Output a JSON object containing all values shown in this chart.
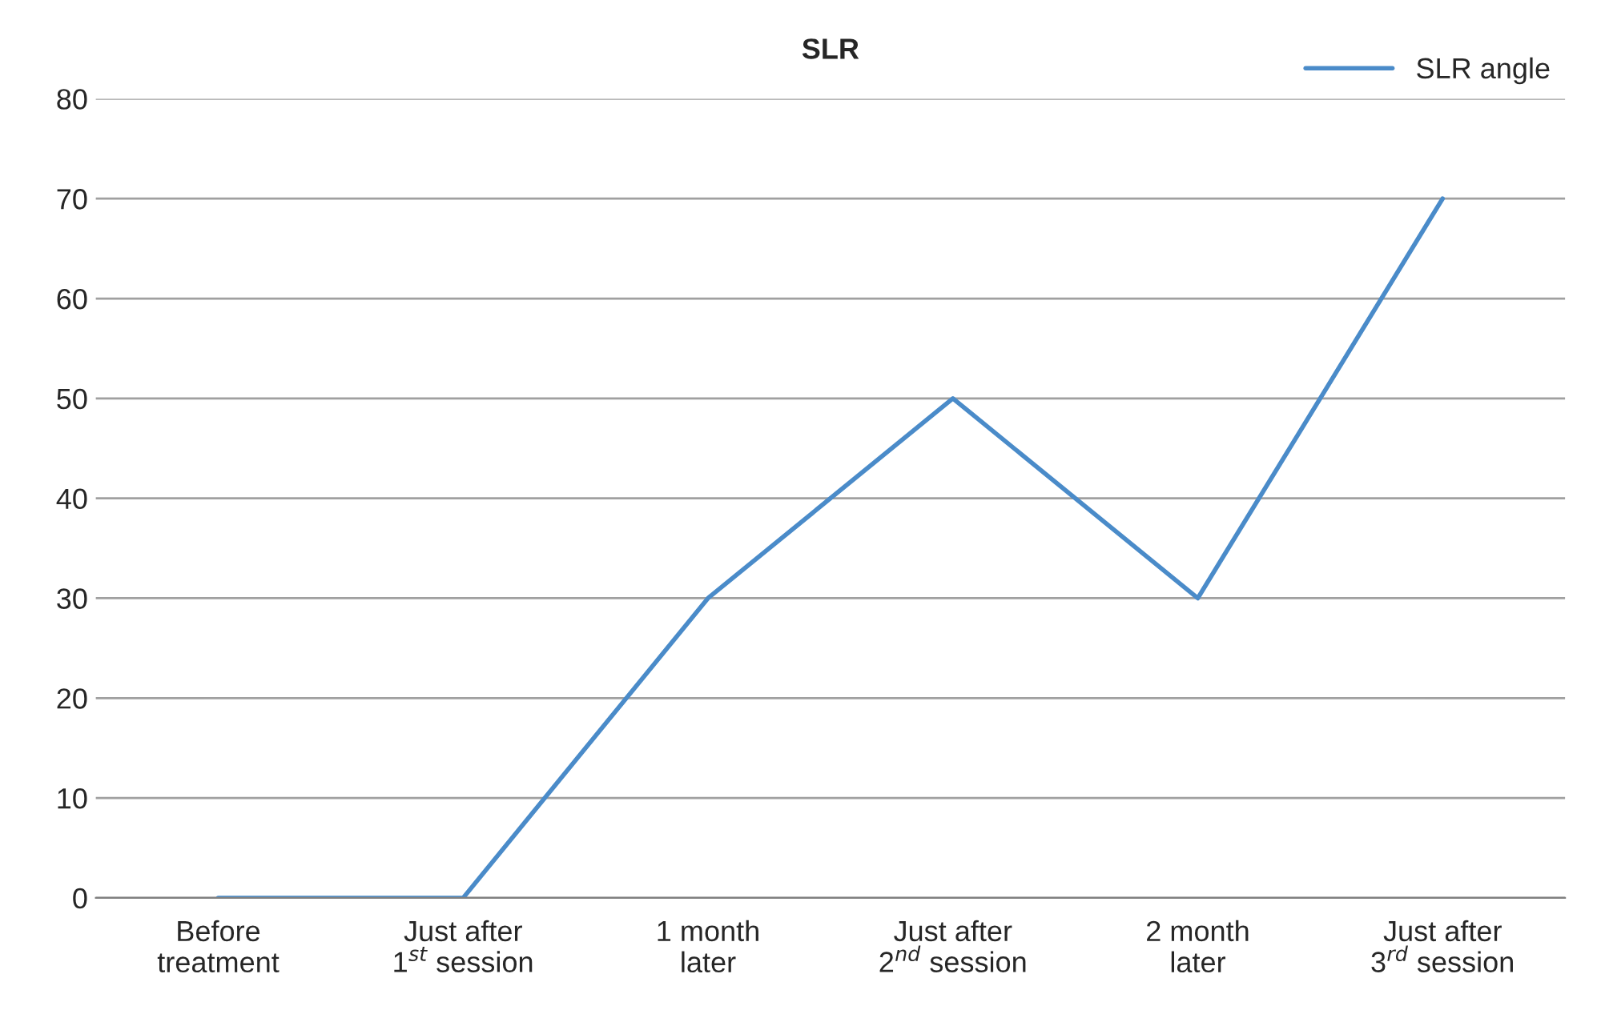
{
  "chart_data": {
    "type": "line",
    "title": "SLR",
    "categories": [
      "Before\ntreatment",
      "Just after\n1$^{st}$ session",
      "1 month\nlater",
      "Just after\n2$^{nd}$ session",
      "2 month\nlater",
      "Just after\n3$^{rd}$ session"
    ],
    "series": [
      {
        "name": "SLR angle",
        "color": "#4a8bc9",
        "values": [
          0,
          0,
          30,
          50,
          30,
          70
        ]
      }
    ],
    "ylim": [
      0,
      80
    ],
    "yticks": [
      0,
      10,
      20,
      30,
      40,
      50,
      60,
      70,
      80
    ],
    "grid": "y",
    "legend": "top right",
    "marker": "none",
    "line_style": "solid"
  }
}
